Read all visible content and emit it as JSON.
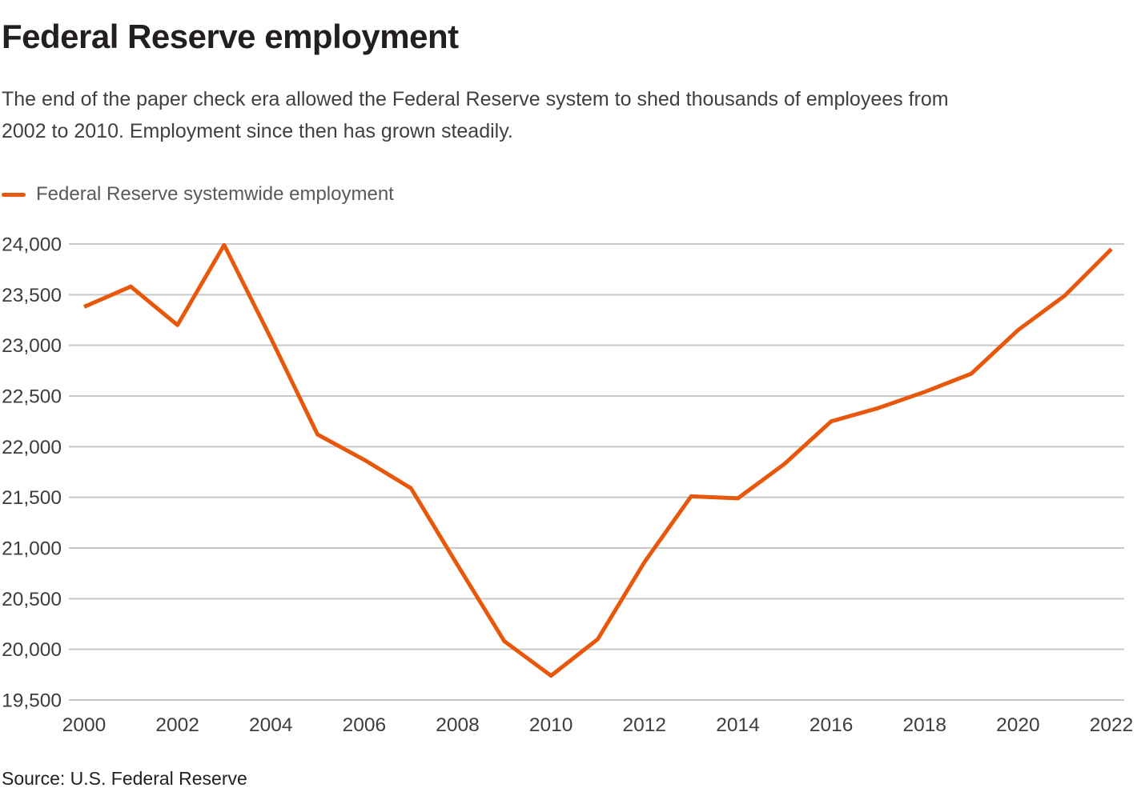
{
  "header": {
    "title": "Federal Reserve employment",
    "subtitle_lines": [
      "The end of the paper check era allowed the Federal Reserve system to shed thousands of employees from",
      "2002 to 2010. Employment since then has grown steadily."
    ]
  },
  "legend": {
    "label": "Federal Reserve systemwide employment",
    "swatch_color": "#E8580C"
  },
  "chart_data": {
    "type": "line",
    "title": "Federal Reserve employment",
    "x": [
      2000,
      2001,
      2002,
      2003,
      2004,
      2005,
      2006,
      2007,
      2008,
      2009,
      2010,
      2011,
      2012,
      2013,
      2014,
      2015,
      2016,
      2017,
      2018,
      2019,
      2020,
      2021,
      2022
    ],
    "series": [
      {
        "name": "Federal Reserve systemwide employment",
        "color": "#E8580C",
        "values": [
          23380,
          23580,
          23200,
          23990,
          23070,
          22120,
          21870,
          21590,
          20830,
          20080,
          19740,
          20100,
          20860,
          21510,
          21490,
          21830,
          22250,
          22380,
          22540,
          22720,
          23150,
          23490,
          23950
        ]
      }
    ],
    "xlabel": "",
    "ylabel": "",
    "ylim": [
      19500,
      24000
    ],
    "ytick_step": 500,
    "ytick_labels": [
      "24,000",
      "23,500",
      "23,000",
      "22,500",
      "22,000",
      "21,500",
      "21,000",
      "20,500",
      "20,000",
      "19,500"
    ],
    "xtick_labels": [
      "2000",
      "2002",
      "2004",
      "2006",
      "2008",
      "2010",
      "2012",
      "2014",
      "2016",
      "2018",
      "2020",
      "2022"
    ],
    "grid": true,
    "grid_color": "#c9c9c9",
    "axis_label_color": "#3d3d3d",
    "legend_position": "top-left"
  },
  "footer": {
    "source": "Source: U.S. Federal Reserve"
  }
}
